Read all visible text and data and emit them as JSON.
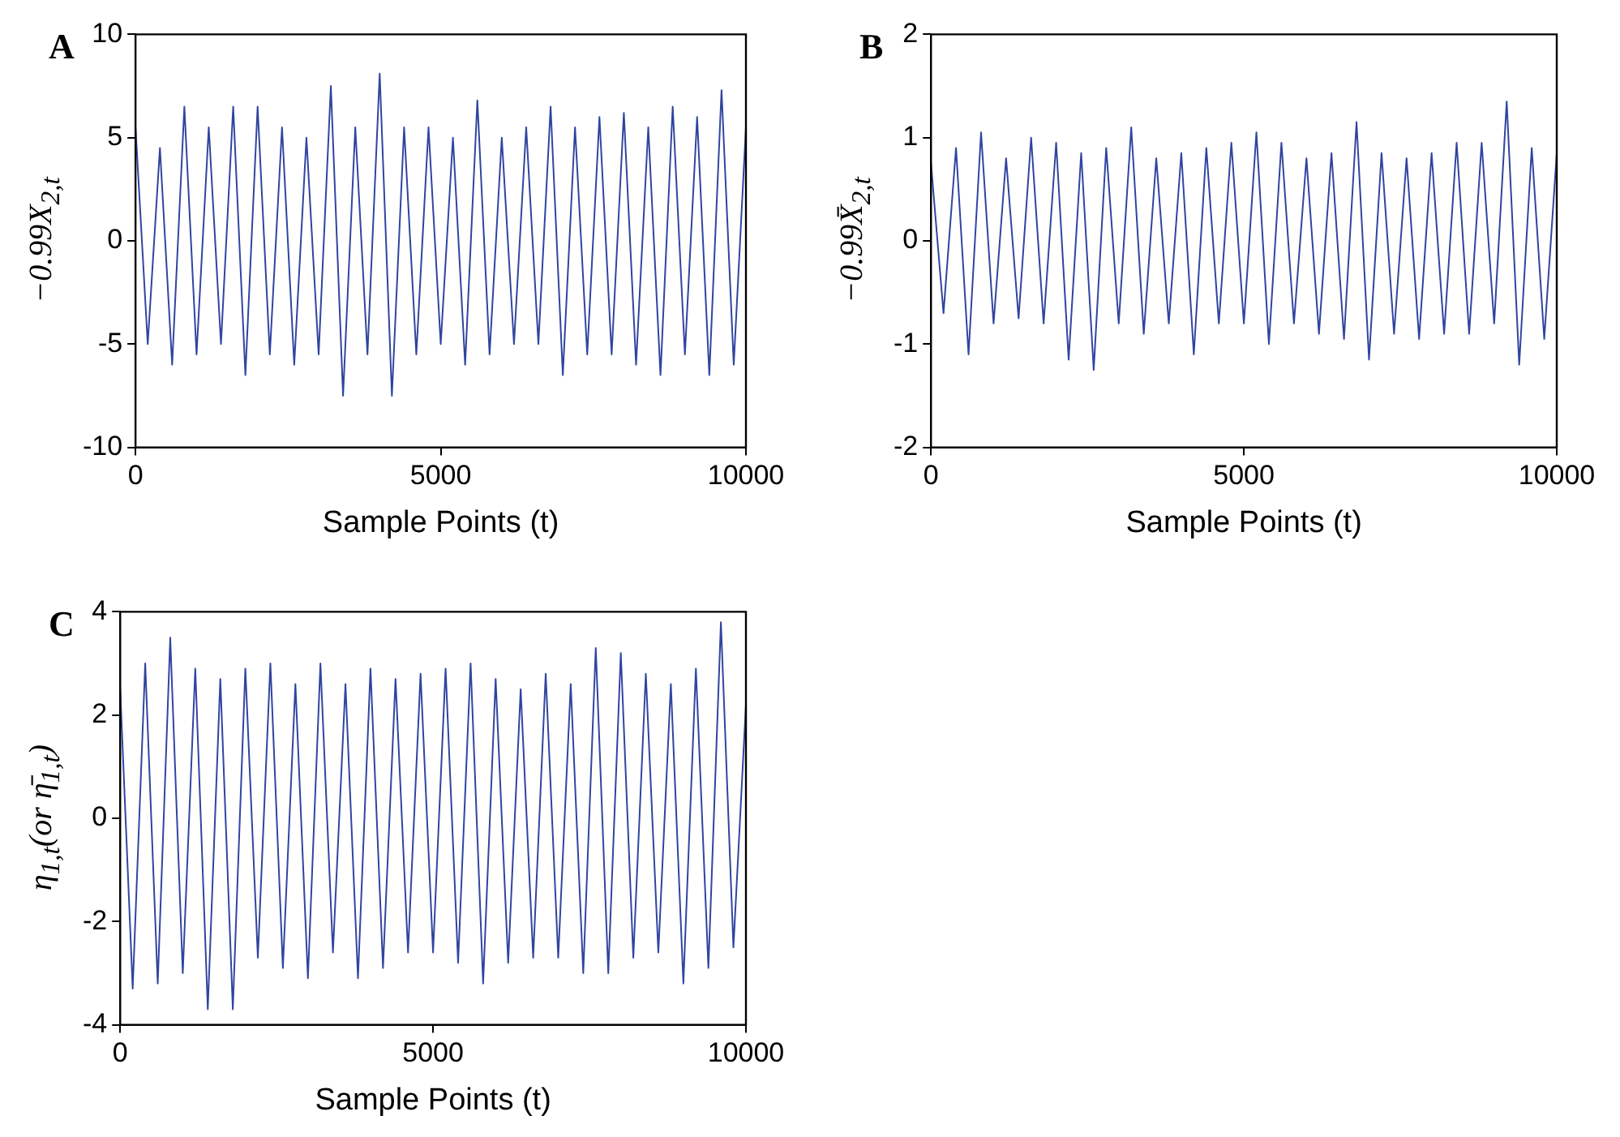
{
  "chart_data": [
    {
      "type": "line",
      "title": "A",
      "xlabel": "Sample Points (t)",
      "ylabel": "−0.99X$_{2,t}$",
      "xlim": [
        0,
        10000
      ],
      "xticks": [
        0,
        5000,
        10000
      ],
      "ylim": [
        -10,
        10
      ],
      "yticks": [
        -10,
        -5,
        0,
        5,
        10
      ],
      "grid": false,
      "x": [
        0,
        200,
        400,
        600,
        800,
        1000,
        1200,
        1400,
        1600,
        1800,
        2000,
        2200,
        2400,
        2600,
        2800,
        3000,
        3200,
        3400,
        3600,
        3800,
        4000,
        4200,
        4400,
        4600,
        4800,
        5000,
        5200,
        5400,
        5600,
        5800,
        6000,
        6200,
        6400,
        6600,
        6800,
        7000,
        7200,
        7400,
        7600,
        7800,
        8000,
        8200,
        8400,
        8600,
        8800,
        9000,
        9200,
        9400,
        9600,
        9800,
        10000
      ],
      "series": [
        {
          "color": "#3045a0",
          "values": [
            5.5,
            -5,
            4.5,
            -6,
            6.5,
            -5.5,
            5.5,
            -5,
            6.5,
            -6.5,
            6.5,
            -5.5,
            5.5,
            -6,
            5,
            -5.5,
            7.5,
            -7.5,
            5.5,
            -5.5,
            8.1,
            -7.5,
            5.5,
            -5.5,
            5.5,
            -5,
            5,
            -6,
            6.8,
            -5.5,
            5,
            -5,
            5.5,
            -5,
            6.5,
            -6.5,
            5.5,
            -5.5,
            6,
            -5.5,
            6.2,
            -6,
            5.5,
            -6.5,
            6.5,
            -5.5,
            6,
            -6.5,
            7.3,
            -6,
            5.5
          ]
        }
      ]
    },
    {
      "type": "line",
      "title": "B",
      "xlabel": "Sample Points (t)",
      "ylabel": "−0.99X̄$_{2,t}$",
      "xlim": [
        0,
        10000
      ],
      "xticks": [
        0,
        5000,
        10000
      ],
      "ylim": [
        -2,
        2
      ],
      "yticks": [
        -2,
        -1,
        0,
        1,
        2
      ],
      "grid": false,
      "x": [
        0,
        200,
        400,
        600,
        800,
        1000,
        1200,
        1400,
        1600,
        1800,
        2000,
        2200,
        2400,
        2600,
        2800,
        3000,
        3200,
        3400,
        3600,
        3800,
        4000,
        4200,
        4400,
        4600,
        4800,
        5000,
        5200,
        5400,
        5600,
        5800,
        6000,
        6200,
        6400,
        6600,
        6800,
        7000,
        7200,
        7400,
        7600,
        7800,
        8000,
        8200,
        8400,
        8600,
        8800,
        9000,
        9200,
        9400,
        9600,
        9800,
        10000
      ],
      "series": [
        {
          "color": "#3045a0",
          "values": [
            0.75,
            -0.7,
            0.9,
            -1.1,
            1.05,
            -0.8,
            0.8,
            -0.75,
            1.0,
            -0.8,
            0.95,
            -1.15,
            0.85,
            -1.25,
            0.9,
            -0.8,
            1.1,
            -0.9,
            0.8,
            -0.8,
            0.85,
            -1.1,
            0.9,
            -0.8,
            0.95,
            -0.8,
            1.05,
            -1.0,
            0.95,
            -0.8,
            0.8,
            -0.9,
            0.85,
            -0.95,
            1.15,
            -1.15,
            0.85,
            -0.9,
            0.8,
            -0.95,
            0.85,
            -0.9,
            0.95,
            -0.9,
            0.95,
            -0.8,
            1.35,
            -1.2,
            0.9,
            -0.95,
            0.85
          ]
        }
      ]
    },
    {
      "type": "line",
      "title": "C",
      "xlabel": "Sample Points (t)",
      "ylabel": "η$_{1,t}$(or η̄$_{1,t}$)",
      "xlim": [
        0,
        10000
      ],
      "xticks": [
        0,
        5000,
        10000
      ],
      "ylim": [
        -4,
        4
      ],
      "yticks": [
        -4,
        -2,
        0,
        2,
        4
      ],
      "grid": false,
      "x": [
        0,
        200,
        400,
        600,
        800,
        1000,
        1200,
        1400,
        1600,
        1800,
        2000,
        2200,
        2400,
        2600,
        2800,
        3000,
        3200,
        3400,
        3600,
        3800,
        4000,
        4200,
        4400,
        4600,
        4800,
        5000,
        5200,
        5400,
        5600,
        5800,
        6000,
        6200,
        6400,
        6600,
        6800,
        7000,
        7200,
        7400,
        7600,
        7800,
        8000,
        8200,
        8400,
        8600,
        8800,
        9000,
        9200,
        9400,
        9600,
        9800,
        10000
      ],
      "series": [
        {
          "color": "#3045a0",
          "values": [
            2.5,
            -3.3,
            3.0,
            -3.2,
            3.5,
            -3.0,
            2.9,
            -3.7,
            2.7,
            -3.7,
            2.9,
            -2.7,
            3.0,
            -2.9,
            2.6,
            -3.1,
            3.0,
            -2.6,
            2.6,
            -3.1,
            2.9,
            -2.9,
            2.7,
            -2.6,
            2.8,
            -2.6,
            2.9,
            -2.8,
            3.0,
            -3.2,
            2.7,
            -2.8,
            2.5,
            -2.7,
            2.8,
            -2.7,
            2.6,
            -3.0,
            3.3,
            -3.0,
            3.2,
            -2.7,
            2.8,
            -2.6,
            2.6,
            -3.2,
            2.9,
            -2.9,
            3.8,
            -2.5,
            2.2
          ]
        }
      ]
    }
  ]
}
